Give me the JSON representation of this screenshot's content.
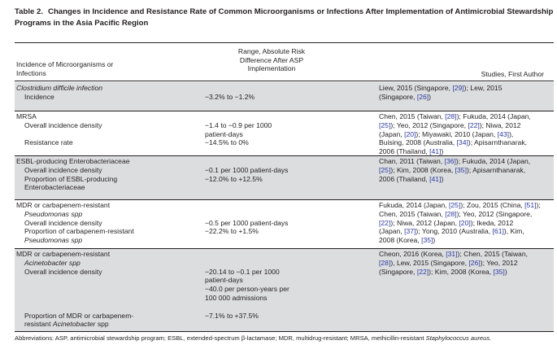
{
  "table": {
    "number": "Table 2.",
    "title_line1": "Changes in Incidence and Resistance Rate of Common Microorganisms or Infections After Implementation of Antimicrobial Stewardship",
    "title_line2": "Programs in the Asia Pacific Region",
    "headers": {
      "col1": [
        "Incidence of Microorganisms or",
        "Infections"
      ],
      "col2": [
        "Range, Absolute Risk",
        "Difference After ASP",
        "Implementation"
      ],
      "col3": [
        "Studies, First Author"
      ]
    },
    "groups": [
      {
        "shaded": true,
        "col1": [
          {
            "text": "Clostridium difficile infection",
            "italic": true,
            "indent": false
          },
          {
            "text": "Incidence",
            "italic": false,
            "indent": true
          }
        ],
        "col2": [
          "",
          "−3.2% to −1.2%"
        ],
        "col3": [
          [
            {
              "t": "Liew, 2015 (Singapore, "
            },
            {
              "t": "[29]",
              "ref": true
            },
            {
              "t": "); Lew, 2015"
            }
          ],
          [
            {
              "t": "(Singapore, "
            },
            {
              "t": "[26]",
              "ref": true
            },
            {
              "t": ")"
            }
          ]
        ]
      },
      {
        "shaded": false,
        "col1": [
          {
            "text": "MRSA",
            "italic": false,
            "indent": false
          },
          {
            "text": "Overall incidence density",
            "italic": false,
            "indent": true
          },
          {
            "text": "",
            "italic": false,
            "indent": true
          },
          {
            "text": "Resistance rate",
            "italic": false,
            "indent": true
          }
        ],
        "col2": [
          "",
          "−1.4 to −0.9 per 1000",
          "patient-days",
          "−14.5% to 0%"
        ],
        "col3": [
          [
            {
              "t": "Chen, 2015 (Taiwan, "
            },
            {
              "t": "[28]",
              "ref": true
            },
            {
              "t": "); Fukuda, 2014 (Japan,"
            }
          ],
          [
            {
              "t": "[25]",
              "ref": true
            },
            {
              "t": "); Yeo, 2012 (Singapore, "
            },
            {
              "t": "[22]",
              "ref": true
            },
            {
              "t": "); Niwa, 2012"
            }
          ],
          [
            {
              "t": "(Japan, "
            },
            {
              "t": "[20]",
              "ref": true
            },
            {
              "t": "); Miyawaki, 2010 (Japan, "
            },
            {
              "t": "[43]",
              "ref": true
            },
            {
              "t": "),"
            }
          ],
          [
            {
              "t": "Buising, 2008 (Australia, "
            },
            {
              "t": "[34]",
              "ref": true
            },
            {
              "t": "); Apisarnthanarak,"
            }
          ],
          [
            {
              "t": "2006 (Thailand, "
            },
            {
              "t": "[41]",
              "ref": true
            },
            {
              "t": ")"
            }
          ]
        ]
      },
      {
        "shaded": true,
        "col1": [
          {
            "text": "ESBL-producing Enterobacteriaceae",
            "italic": false,
            "indent": false
          },
          {
            "text": "Overall incidence density",
            "italic": false,
            "indent": true
          },
          {
            "text": "Proportion of ESBL-producing",
            "italic": false,
            "indent": true
          },
          {
            "text": "Enterobacteriaceae",
            "italic": false,
            "indent": true
          }
        ],
        "col2": [
          "",
          "−0.1 per 1000 patient-days",
          "−12.0% to +12.5%"
        ],
        "col3": [
          [
            {
              "t": "Chan, 2011 (Taiwan, "
            },
            {
              "t": "[36]",
              "ref": true
            },
            {
              "t": "); Fukuda, 2014 (Japan,"
            }
          ],
          [
            {
              "t": "[25]",
              "ref": true
            },
            {
              "t": "); Kim, 2008 (Korea, "
            },
            {
              "t": "[35]",
              "ref": true
            },
            {
              "t": "); Apisarnthanarak,"
            }
          ],
          [
            {
              "t": "2006 (Thailand, "
            },
            {
              "t": "[41]",
              "ref": true
            },
            {
              "t": ")"
            }
          ]
        ]
      },
      {
        "shaded": false,
        "col1": [
          {
            "text": "MDR or carbapenem-resistant",
            "italic": false,
            "indent": false
          },
          {
            "text": "Pseudomonas spp",
            "italic": true,
            "indent": true
          },
          {
            "text": "Overall incidence density",
            "italic": false,
            "indent": true
          },
          {
            "text": "Proportion of carbapenem-resistant",
            "italic": false,
            "indent": true
          },
          {
            "text": "Pseudomonas spp",
            "italic": true,
            "indent": true
          }
        ],
        "col2": [
          "",
          "",
          "−0.5 per 1000 patient-days",
          "−22.2% to +1.5%"
        ],
        "col3": [
          [
            {
              "t": "Fukuda, 2014 (Japan, "
            },
            {
              "t": "[25]",
              "ref": true
            },
            {
              "t": "); Zou, 2015 (China, "
            },
            {
              "t": "[51]",
              "ref": true
            },
            {
              "t": ");"
            }
          ],
          [
            {
              "t": "Chen, 2015 (Taiwan, "
            },
            {
              "t": "[28]",
              "ref": true
            },
            {
              "t": "); Yeo, 2012 (Singapore,"
            }
          ],
          [
            {
              "t": "[22]",
              "ref": true
            },
            {
              "t": "); Niwa, 2012 (Japan, "
            },
            {
              "t": "[20]",
              "ref": true
            },
            {
              "t": "); Ikeda, 2012"
            }
          ],
          [
            {
              "t": "(Japan, "
            },
            {
              "t": "[37]",
              "ref": true
            },
            {
              "t": "); Yong, 2010 (Australia, "
            },
            {
              "t": "[61]",
              "ref": true
            },
            {
              "t": "), Kim,"
            }
          ],
          [
            {
              "t": "2008 (Korea, "
            },
            {
              "t": "[35]",
              "ref": true
            },
            {
              "t": ")"
            }
          ]
        ]
      },
      {
        "shaded": true,
        "col1": [
          {
            "text": "MDR or carbapenem-resistant",
            "italic": false,
            "indent": false
          },
          {
            "text": "Acinetobacter spp",
            "italic": true,
            "indent": true
          },
          {
            "text": "Overall incidence density",
            "italic": false,
            "indent": true
          },
          {
            "text": "",
            "italic": false,
            "indent": true
          },
          {
            "text": "",
            "italic": false,
            "indent": true
          },
          {
            "text": "",
            "italic": false,
            "indent": true
          },
          {
            "text": "",
            "italic": false,
            "indent": true
          },
          {
            "text": "Proportion of MDR or carbapenem-",
            "italic": false,
            "indent": true
          },
          {
            "text": "resistant Acinetobacter spp",
            "italic": false,
            "indent": true
          }
        ],
        "col2": [
          "",
          "",
          "−20.14 to −0.1 per 1000",
          "patient-days",
          "−40.0 per person-years per",
          "100 000 admissions",
          "",
          "−7.1% to +37.5%"
        ],
        "col3": [
          [
            {
              "t": "Cheon, 2016 (Korea, "
            },
            {
              "t": "[31]",
              "ref": true
            },
            {
              "t": "); Chen, 2015 (Taiwan,"
            }
          ],
          [
            {
              "t": "[28]",
              "ref": true
            },
            {
              "t": "), Lew, 2015 (Singapore, "
            },
            {
              "t": "[26]",
              "ref": true
            },
            {
              "t": "); Yeo, 2012"
            }
          ],
          [
            {
              "t": "(Singapore, "
            },
            {
              "t": "[22]",
              "ref": true
            },
            {
              "t": "); Kim, 2008 (Korea, "
            },
            {
              "t": "[35]",
              "ref": true
            },
            {
              "t": ")"
            }
          ]
        ]
      }
    ],
    "footnote": "Abbreviations: ASP, antimicrobial stewardship program; ESBL, extended-spectrum β-lactamase; MDR, multidrug-resistant; MRSA, methicillin-resistant ",
    "footnote_italic": "Staphylococcus aureus."
  }
}
